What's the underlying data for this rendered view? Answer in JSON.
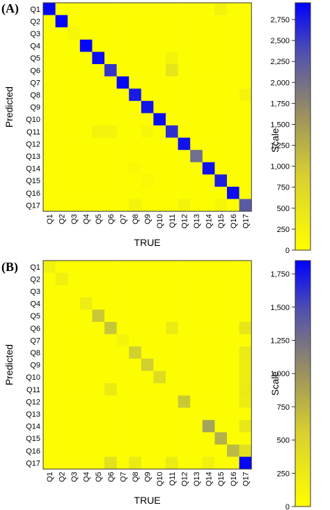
{
  "colors": {
    "low": "#ffff00",
    "high": "#0000ff"
  },
  "chart_data": [
    {
      "type": "heatmap",
      "panel_label": "(A)",
      "xlabel": "TRUE",
      "ylabel": "Predicted",
      "colorbar_label": "Scale",
      "categories": [
        "Q1",
        "Q2",
        "Q3",
        "Q4",
        "Q5",
        "Q6",
        "Q7",
        "Q8",
        "Q9",
        "Q10",
        "Q11",
        "Q12",
        "Q13",
        "Q14",
        "Q15",
        "Q16",
        "Q17"
      ],
      "colorbar_range": [
        0,
        2950
      ],
      "colorbar_ticks": [
        0,
        250,
        500,
        750,
        1000,
        1250,
        1500,
        1750,
        2000,
        2250,
        2500,
        2750
      ],
      "colorbar_tick_labels": [
        "0",
        "250",
        "500",
        "750",
        "1,000",
        "1,250",
        "1,500",
        "1,750",
        "2,000",
        "2,250",
        "2,500",
        "2,750"
      ],
      "diagonal": [
        2900,
        2900,
        60,
        2850,
        2800,
        2250,
        2850,
        2600,
        2700,
        2800,
        2350,
        2700,
        1500,
        2750,
        2550,
        2800,
        1750
      ],
      "off_diagonal": [
        {
          "row": "Q1",
          "col": "Q15",
          "value": 90
        },
        {
          "row": "Q6",
          "col": "Q11",
          "value": 200
        },
        {
          "row": "Q5",
          "col": "Q11",
          "value": 70
        },
        {
          "row": "Q11",
          "col": "Q5",
          "value": 80
        },
        {
          "row": "Q11",
          "col": "Q6",
          "value": 80
        },
        {
          "row": "Q11",
          "col": "Q9",
          "value": 60
        },
        {
          "row": "Q8",
          "col": "Q17",
          "value": 70
        },
        {
          "row": "Q17",
          "col": "Q8",
          "value": 80
        },
        {
          "row": "Q17",
          "col": "Q12",
          "value": 70
        },
        {
          "row": "Q17",
          "col": "Q15",
          "value": 60
        },
        {
          "row": "Q14",
          "col": "Q8",
          "value": 40
        },
        {
          "row": "Q15",
          "col": "Q9",
          "value": 40
        }
      ]
    },
    {
      "type": "heatmap",
      "panel_label": "(B)",
      "xlabel": "TRUE",
      "ylabel": "Predicted",
      "colorbar_label": "Scale",
      "categories": [
        "Q1",
        "Q2",
        "Q3",
        "Q4",
        "Q5",
        "Q6",
        "Q7",
        "Q8",
        "Q9",
        "Q10",
        "Q11",
        "Q12",
        "Q13",
        "Q14",
        "Q15",
        "Q16",
        "Q17"
      ],
      "colorbar_range": [
        0,
        1850
      ],
      "colorbar_ticks": [
        0,
        250,
        500,
        750,
        1000,
        1250,
        1500,
        1750
      ],
      "colorbar_tick_labels": [
        "0",
        "250",
        "500",
        "750",
        "1,000",
        "1,250",
        "1,500",
        "1,750"
      ],
      "diagonal": [
        60,
        70,
        10,
        80,
        300,
        320,
        40,
        250,
        250,
        180,
        10,
        300,
        10,
        550,
        450,
        400,
        1800
      ],
      "off_diagonal": [
        {
          "row": "Q6",
          "col": "Q11",
          "value": 90
        },
        {
          "row": "Q11",
          "col": "Q6",
          "value": 90
        },
        {
          "row": "Q6",
          "col": "Q17",
          "value": 120
        },
        {
          "row": "Q8",
          "col": "Q17",
          "value": 100
        },
        {
          "row": "Q9",
          "col": "Q17",
          "value": 80
        },
        {
          "row": "Q10",
          "col": "Q17",
          "value": 80
        },
        {
          "row": "Q11",
          "col": "Q17",
          "value": 90
        },
        {
          "row": "Q12",
          "col": "Q17",
          "value": 80
        },
        {
          "row": "Q14",
          "col": "Q17",
          "value": 110
        },
        {
          "row": "Q17",
          "col": "Q6",
          "value": 150
        },
        {
          "row": "Q17",
          "col": "Q8",
          "value": 90
        },
        {
          "row": "Q17",
          "col": "Q11",
          "value": 90
        },
        {
          "row": "Q17",
          "col": "Q14",
          "value": 60
        },
        {
          "row": "Q16",
          "col": "Q17",
          "value": 150
        }
      ]
    }
  ]
}
